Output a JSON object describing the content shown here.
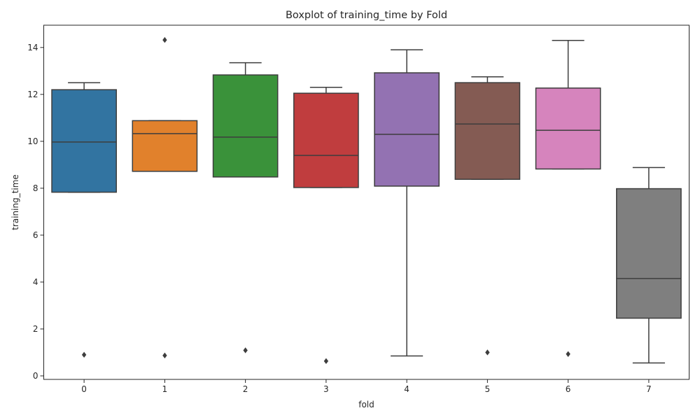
{
  "chart_data": {
    "type": "boxplot",
    "title": "Boxplot of training_time by Fold",
    "xlabel": "fold",
    "ylabel": "training_time",
    "ylim": [
      -0.15,
      14.95
    ],
    "yticks": [
      0,
      2,
      4,
      6,
      8,
      10,
      12,
      14
    ],
    "grid": false,
    "categories": [
      "0",
      "1",
      "2",
      "3",
      "4",
      "5",
      "6",
      "7"
    ],
    "colors": [
      "#3274a1",
      "#e1812c",
      "#3a923a",
      "#c03d3e",
      "#9372b2",
      "#845b53",
      "#d684bd",
      "#7f7f7f"
    ],
    "line_color": "#3d3d3d",
    "boxes": [
      {
        "fold": "0",
        "whisker_low": 7.83,
        "q1": 7.83,
        "median": 9.97,
        "q3": 12.2,
        "whisker_high": 12.5,
        "outliers": [
          0.9
        ]
      },
      {
        "fold": "1",
        "whisker_low": 8.72,
        "q1": 8.72,
        "median": 10.33,
        "q3": 10.88,
        "whisker_high": 10.88,
        "outliers": [
          14.32,
          0.87
        ]
      },
      {
        "fold": "2",
        "whisker_low": 8.48,
        "q1": 8.48,
        "median": 10.18,
        "q3": 12.83,
        "whisker_high": 13.35,
        "outliers": [
          1.09
        ]
      },
      {
        "fold": "3",
        "whisker_low": 8.03,
        "q1": 8.03,
        "median": 9.4,
        "q3": 12.05,
        "whisker_high": 12.3,
        "outliers": [
          0.63
        ]
      },
      {
        "fold": "4",
        "whisker_low": 0.85,
        "q1": 8.09,
        "median": 10.3,
        "q3": 12.92,
        "whisker_high": 13.9,
        "outliers": []
      },
      {
        "fold": "5",
        "whisker_low": 8.38,
        "q1": 8.38,
        "median": 10.74,
        "q3": 12.5,
        "whisker_high": 12.75,
        "outliers": [
          1.0
        ]
      },
      {
        "fold": "6",
        "whisker_low": 8.82,
        "q1": 8.82,
        "median": 10.47,
        "q3": 12.27,
        "whisker_high": 14.3,
        "outliers": [
          0.93
        ]
      },
      {
        "fold": "7",
        "whisker_low": 0.55,
        "q1": 2.46,
        "median": 4.15,
        "q3": 7.98,
        "whisker_high": 8.88,
        "outliers": []
      }
    ]
  }
}
